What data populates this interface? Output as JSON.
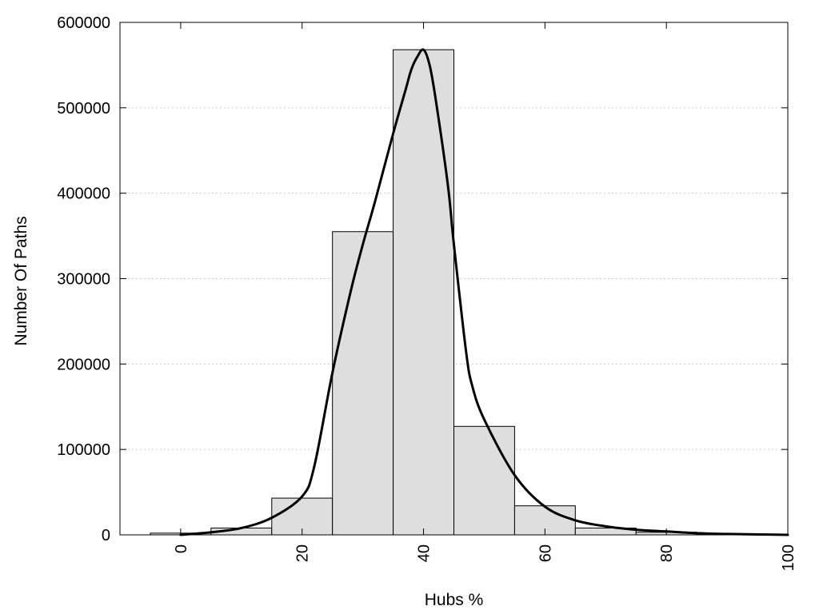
{
  "chart_data": {
    "type": "bar",
    "title": "",
    "xlabel": "Hubs %",
    "ylabel": "Number Of Paths",
    "xlim": [
      -10,
      100
    ],
    "ylim": [
      0,
      600000
    ],
    "x_ticks": [
      0,
      20,
      40,
      60,
      80,
      100
    ],
    "y_ticks": [
      0,
      100000,
      200000,
      300000,
      400000,
      500000,
      600000
    ],
    "grid": "horizontal-dotted",
    "legend": "none",
    "bin_width": 10,
    "bins": [
      {
        "center": 0,
        "value": 2000
      },
      {
        "center": 10,
        "value": 8000
      },
      {
        "center": 20,
        "value": 43000
      },
      {
        "center": 30,
        "value": 355000
      },
      {
        "center": 40,
        "value": 568000
      },
      {
        "center": 50,
        "value": 127000
      },
      {
        "center": 60,
        "value": 34000
      },
      {
        "center": 70,
        "value": 8000
      },
      {
        "center": 80,
        "value": 3000
      },
      {
        "center": 90,
        "value": 1000
      }
    ],
    "curve": {
      "x": [
        0,
        5,
        10,
        15,
        20,
        22,
        25,
        28,
        30,
        32,
        35,
        37,
        38,
        39,
        40,
        41,
        42,
        44,
        45,
        47,
        48,
        50,
        55,
        60,
        65,
        70,
        75,
        80,
        85,
        90,
        95,
        100
      ],
      "y": [
        0,
        3000,
        8000,
        20000,
        45000,
        80000,
        190000,
        285000,
        340000,
        390000,
        470000,
        520000,
        545000,
        560000,
        568000,
        550000,
        510000,
        410000,
        340000,
        215000,
        175000,
        135000,
        70000,
        33000,
        17000,
        10000,
        6000,
        4000,
        2000,
        1000,
        500,
        0
      ]
    },
    "colors": {
      "bar_fill": "#dedede",
      "bar_stroke": "#000000",
      "curve": "#000000",
      "grid": "#cccccc"
    }
  }
}
